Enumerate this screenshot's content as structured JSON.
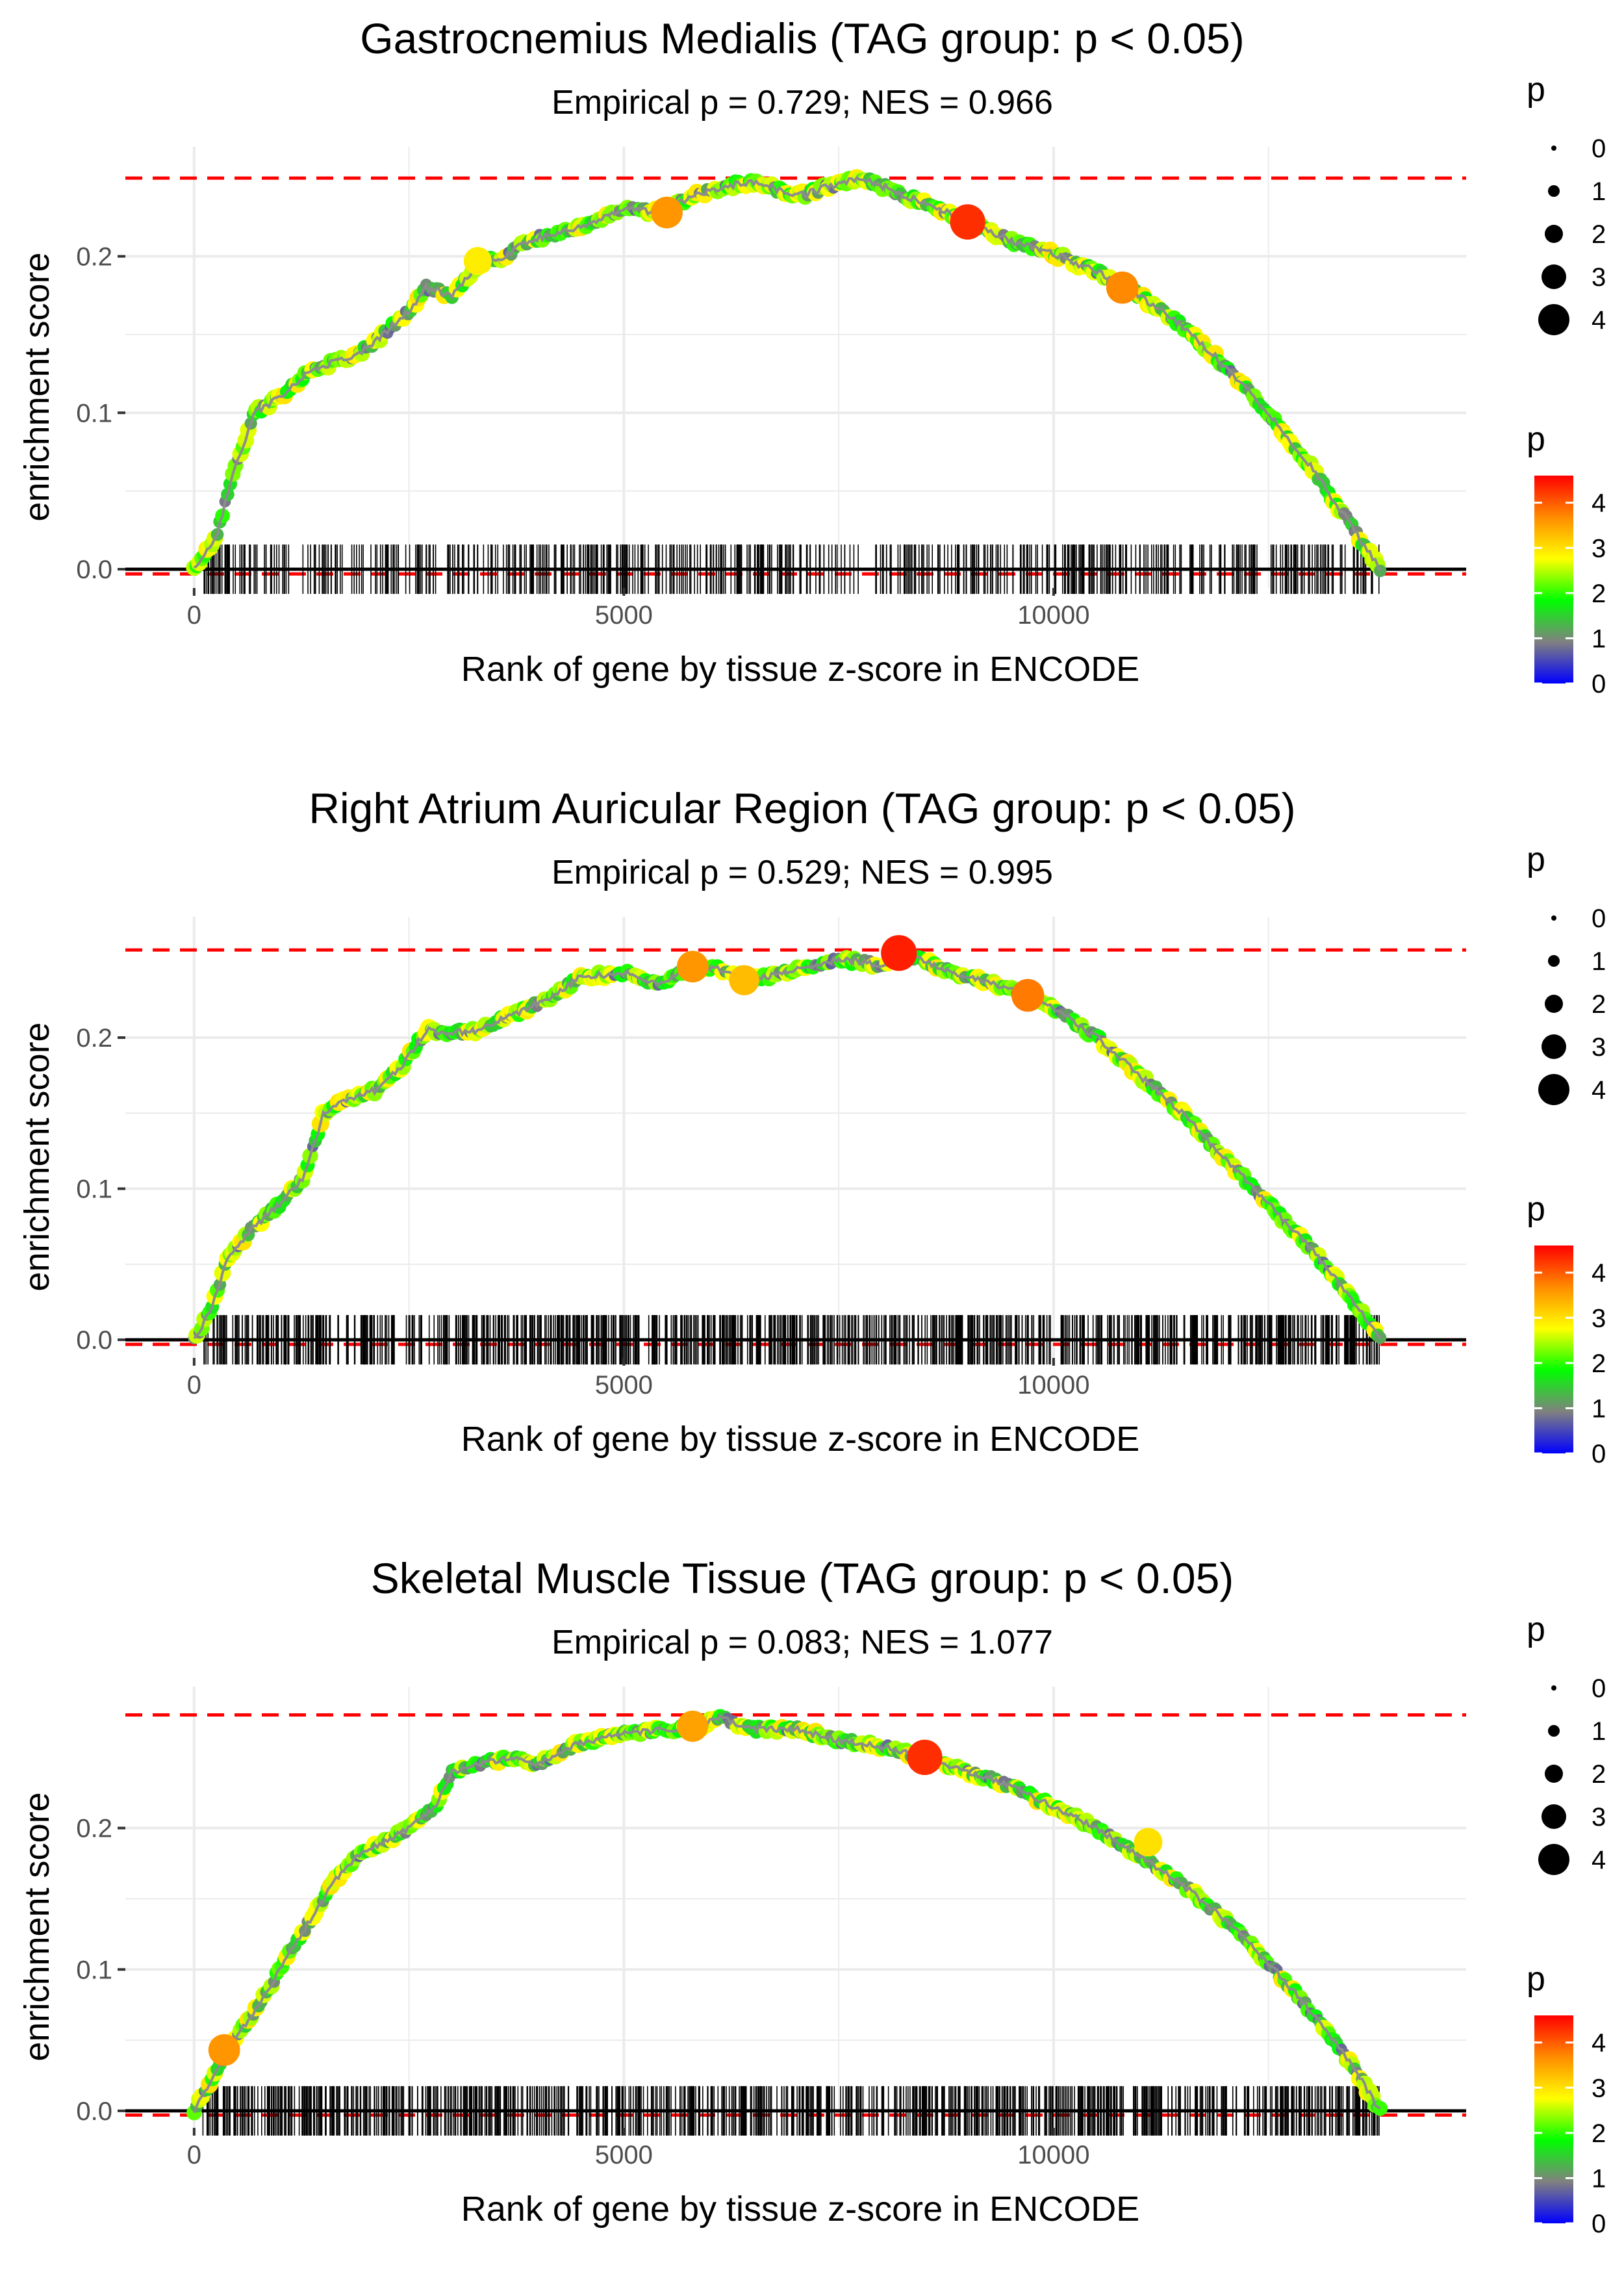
{
  "chart_data": [
    {
      "type": "line",
      "title": "Gastrocnemius Medialis (TAG group: p < 0.05)",
      "subtitle": "Empirical p = 0.729; NES = 0.966",
      "xlabel": "Rank of gene by tissue z-score in ENCODE",
      "ylabel": "enrichment score",
      "xlim": [
        -800,
        14800
      ],
      "ylim": [
        -0.012,
        0.27
      ],
      "x_ticks": [
        0,
        5000,
        10000
      ],
      "x_tick_labels": [
        "0",
        "5000",
        "10000"
      ],
      "y_ticks": [
        0.0,
        0.1,
        0.2
      ],
      "y_tick_labels": [
        "0.0",
        "0.1",
        "0.2"
      ],
      "max_es": 0.25,
      "min_es": -0.003,
      "curve_x": [
        0,
        250,
        450,
        700,
        1000,
        1300,
        1600,
        1900,
        2200,
        2500,
        2700,
        3000,
        3300,
        3600,
        3900,
        4200,
        4600,
        5000,
        5500,
        5800,
        6000,
        6300,
        6600,
        7000,
        7400,
        7800,
        8200,
        8600,
        9000,
        9500,
        10000,
        10500,
        11000,
        11500,
        12000,
        12500,
        13000,
        13500,
        13800
      ],
      "curve_y": [
        0.0,
        0.02,
        0.06,
        0.1,
        0.11,
        0.125,
        0.132,
        0.137,
        0.15,
        0.165,
        0.18,
        0.175,
        0.195,
        0.2,
        0.21,
        0.215,
        0.22,
        0.23,
        0.228,
        0.24,
        0.242,
        0.246,
        0.247,
        0.238,
        0.245,
        0.25,
        0.24,
        0.232,
        0.222,
        0.21,
        0.202,
        0.19,
        0.175,
        0.155,
        0.13,
        0.1,
        0.065,
        0.025,
        0.0
      ],
      "highlight_points": [
        {
          "x": 5500,
          "y": 0.228,
          "p": 3.6
        },
        {
          "x": 9000,
          "y": 0.222,
          "p": 4.3
        },
        {
          "x": 10800,
          "y": 0.18,
          "p": 3.7
        },
        {
          "x": 3300,
          "y": 0.197,
          "p": 2.9
        }
      ],
      "rug_count": 620,
      "rug_range": [
        100,
        13800
      ],
      "size_legend": {
        "title": "p",
        "values": [
          "0",
          "1",
          "2",
          "3",
          "4"
        ]
      },
      "color_legend": {
        "title": "p",
        "ticks": [
          "4",
          "3",
          "2",
          "1",
          "0"
        ],
        "range": [
          0,
          4.6
        ],
        "colors": [
          "#0000ff",
          "#808080",
          "#00ff00",
          "#ffff00",
          "#ff8c00",
          "#ff0000"
        ]
      }
    },
    {
      "type": "line",
      "title": "Right Atrium Auricular Region (TAG group: p < 0.05)",
      "subtitle": "Empirical p = 0.529; NES = 0.995",
      "xlabel": "Rank of gene by tissue z-score in ENCODE",
      "ylabel": "enrichment score",
      "xlim": [
        -800,
        14800
      ],
      "ylim": [
        -0.012,
        0.28
      ],
      "x_ticks": [
        0,
        5000,
        10000
      ],
      "x_tick_labels": [
        "0",
        "5000",
        "10000"
      ],
      "y_ticks": [
        0.0,
        0.1,
        0.2
      ],
      "y_tick_labels": [
        "0.0",
        "0.1",
        "0.2"
      ],
      "max_es": 0.258,
      "min_es": -0.003,
      "curve_x": [
        0,
        200,
        400,
        700,
        1000,
        1300,
        1500,
        1800,
        2100,
        2400,
        2700,
        3000,
        3300,
        3700,
        4100,
        4500,
        5000,
        5400,
        5800,
        6200,
        6500,
        7000,
        7500,
        8000,
        8200,
        8600,
        9000,
        9500,
        10000,
        10500,
        11000,
        11500,
        12000,
        12500,
        13000,
        13500,
        13800
      ],
      "curve_y": [
        0.0,
        0.02,
        0.055,
        0.075,
        0.09,
        0.11,
        0.15,
        0.16,
        0.165,
        0.18,
        0.205,
        0.203,
        0.205,
        0.215,
        0.225,
        0.24,
        0.243,
        0.235,
        0.247,
        0.245,
        0.238,
        0.245,
        0.252,
        0.248,
        0.256,
        0.248,
        0.24,
        0.232,
        0.22,
        0.2,
        0.175,
        0.15,
        0.12,
        0.09,
        0.06,
        0.025,
        0.0
      ],
      "highlight_points": [
        {
          "x": 5800,
          "y": 0.247,
          "p": 3.6
        },
        {
          "x": 6400,
          "y": 0.238,
          "p": 3.3
        },
        {
          "x": 8200,
          "y": 0.256,
          "p": 4.4
        },
        {
          "x": 9700,
          "y": 0.228,
          "p": 3.8
        }
      ],
      "rug_count": 950,
      "rug_range": [
        100,
        13800
      ],
      "size_legend": {
        "title": "p",
        "values": [
          "0",
          "1",
          "2",
          "3",
          "4"
        ]
      },
      "color_legend": {
        "title": "p",
        "ticks": [
          "4",
          "3",
          "2",
          "1",
          "0"
        ],
        "range": [
          0,
          4.6
        ],
        "colors": [
          "#0000ff",
          "#808080",
          "#00ff00",
          "#ffff00",
          "#ff8c00",
          "#ff0000"
        ]
      }
    },
    {
      "type": "line",
      "title": "Skeletal Muscle Tissue (TAG group: p < 0.05)",
      "subtitle": "Empirical p = 0.083; NES = 1.077",
      "xlabel": "Rank of gene by tissue z-score in ENCODE",
      "ylabel": "enrichment score",
      "xlim": [
        -800,
        14800
      ],
      "ylim": [
        -0.012,
        0.3
      ],
      "x_ticks": [
        0,
        5000,
        10000
      ],
      "x_tick_labels": [
        "0",
        "5000",
        "10000"
      ],
      "y_ticks": [
        0.0,
        0.1,
        0.2
      ],
      "y_tick_labels": [
        "0.0",
        "0.1",
        "0.2"
      ],
      "max_es": 0.28,
      "min_es": -0.003,
      "curve_x": [
        0,
        200,
        400,
        700,
        1000,
        1300,
        1600,
        1900,
        2200,
        2500,
        2800,
        3000,
        3300,
        3700,
        4000,
        4400,
        4800,
        5200,
        5600,
        5900,
        6100,
        6500,
        7000,
        7500,
        8000,
        8500,
        9000,
        9500,
        10000,
        10500,
        11000,
        11500,
        12000,
        12500,
        13000,
        13500,
        13800
      ],
      "curve_y": [
        0.0,
        0.02,
        0.045,
        0.07,
        0.1,
        0.13,
        0.16,
        0.18,
        0.19,
        0.2,
        0.215,
        0.24,
        0.245,
        0.25,
        0.245,
        0.258,
        0.265,
        0.268,
        0.27,
        0.272,
        0.278,
        0.27,
        0.27,
        0.262,
        0.258,
        0.25,
        0.24,
        0.23,
        0.215,
        0.2,
        0.18,
        0.16,
        0.135,
        0.105,
        0.07,
        0.03,
        0.0
      ],
      "highlight_points": [
        {
          "x": 350,
          "y": 0.043,
          "p": 3.6
        },
        {
          "x": 5800,
          "y": 0.272,
          "p": 3.5
        },
        {
          "x": 8500,
          "y": 0.25,
          "p": 4.3
        },
        {
          "x": 11100,
          "y": 0.19,
          "p": 3.0
        }
      ],
      "rug_count": 900,
      "rug_range": [
        100,
        13800
      ],
      "size_legend": {
        "title": "p",
        "values": [
          "0",
          "1",
          "2",
          "3",
          "4"
        ]
      },
      "color_legend": {
        "title": "p",
        "ticks": [
          "4",
          "3",
          "2",
          "1",
          "0"
        ],
        "range": [
          0,
          4.6
        ],
        "colors": [
          "#0000ff",
          "#808080",
          "#00ff00",
          "#ffff00",
          "#ff8c00",
          "#ff0000"
        ]
      }
    }
  ],
  "colors": {
    "grid": "#ebebeb",
    "dashed_ref": "#ff0000",
    "baseline": "#000000",
    "rug": "#000000",
    "axis_text": "#4d4d4d"
  }
}
